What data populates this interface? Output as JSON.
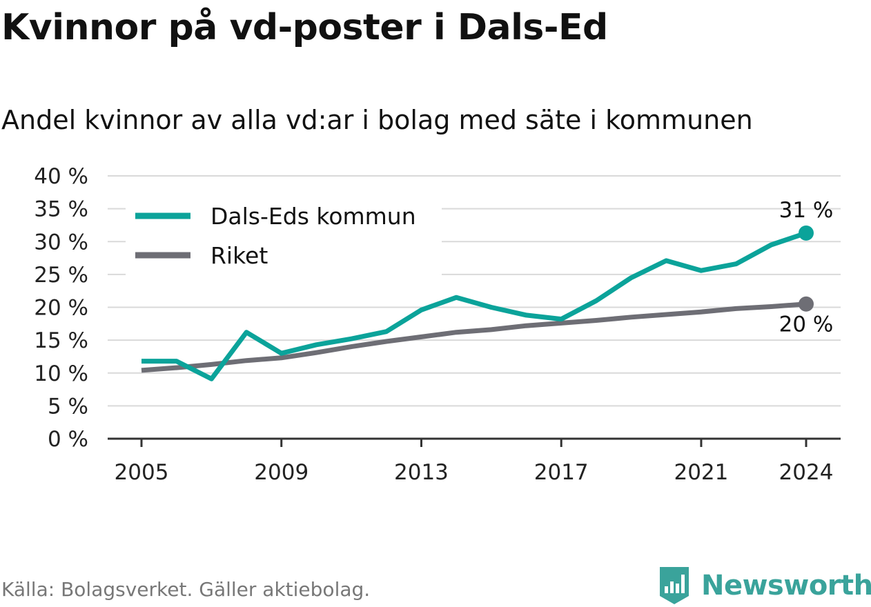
{
  "header": {
    "title": "Kvinnor på vd-poster i Dals-Ed",
    "subtitle": "Andel kvinnor av alla vd:ar i bolag med säte i kommunen"
  },
  "footer": {
    "source": "Källa: Bolagsverket. Gäller aktiebolag.",
    "brand": "Newsworthy",
    "brand_icon": "bar-chart-badge-icon"
  },
  "colors": {
    "dals_ed": "#0ba39a",
    "riket": "#6e6e75",
    "grid": "#d9d9d9",
    "axis": "#333333",
    "brand": "#3aa39b"
  },
  "chart_data": {
    "type": "line",
    "title": "Kvinnor på vd-poster i Dals-Ed",
    "subtitle": "Andel kvinnor av alla vd:ar i bolag med säte i kommunen",
    "xlabel": "",
    "ylabel": "",
    "x": [
      2005,
      2006,
      2007,
      2008,
      2009,
      2010,
      2011,
      2012,
      2013,
      2014,
      2015,
      2016,
      2017,
      2018,
      2019,
      2020,
      2021,
      2022,
      2023,
      2024
    ],
    "x_ticks": [
      2005,
      2009,
      2013,
      2017,
      2021,
      2024
    ],
    "ylim": [
      0,
      40
    ],
    "y_ticks": [
      0,
      5,
      10,
      15,
      20,
      25,
      30,
      35,
      40
    ],
    "y_tick_labels": [
      "0 %",
      "5 %",
      "10 %",
      "15 %",
      "20 %",
      "25 %",
      "30 %",
      "35 %",
      "40 %"
    ],
    "grid": true,
    "legend_position": "top-left",
    "series": [
      {
        "name": "Dals-Eds kommun",
        "color": "#0ba39a",
        "values": [
          11.8,
          11.8,
          9.1,
          16.2,
          13.0,
          14.3,
          15.2,
          16.3,
          19.6,
          21.5,
          20.0,
          18.8,
          18.2,
          21.0,
          24.5,
          27.1,
          25.6,
          26.6,
          29.5,
          31.3
        ],
        "end_label": "31 %"
      },
      {
        "name": "Riket",
        "color": "#6e6e75",
        "values": [
          10.4,
          10.8,
          11.3,
          11.9,
          12.3,
          13.1,
          14.0,
          14.8,
          15.5,
          16.2,
          16.6,
          17.2,
          17.6,
          18.0,
          18.5,
          18.9,
          19.3,
          19.8,
          20.1,
          20.5
        ],
        "end_label": "20 %"
      }
    ]
  }
}
